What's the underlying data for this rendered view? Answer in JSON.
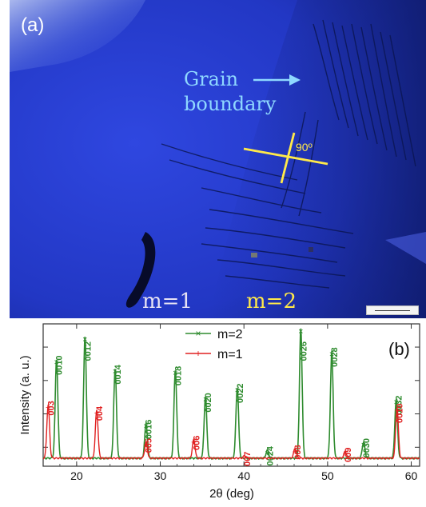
{
  "panel_a": {
    "label": "(a)",
    "grain_boundary_lines": [
      "Grain",
      "boundary"
    ],
    "angle_label": "90º",
    "region_left_label": "m=1",
    "region_right_label": "m=2",
    "colors": {
      "background": "#2338c8",
      "grain_text": "#8fd8ff",
      "angle_marker": "#ffe94a"
    }
  },
  "chart_data": {
    "type": "line",
    "panel_label": "(b)",
    "xlabel": "2θ (deg)",
    "ylabel": "Intensity (a. u.)",
    "xlim": [
      16,
      61
    ],
    "ylim": [
      0,
      1
    ],
    "xticks": [
      20,
      30,
      40,
      50,
      60
    ],
    "grid": false,
    "legend_position": "top-center",
    "series": [
      {
        "name": "m=2",
        "color": "#2e8b2e",
        "marker": "x",
        "peaks": [
          {
            "label": "0010",
            "x": 17.6,
            "y": 0.74
          },
          {
            "label": "0012",
            "x": 21.0,
            "y": 0.91
          },
          {
            "label": "0014",
            "x": 24.6,
            "y": 0.67
          },
          {
            "label": "0016",
            "x": 28.3,
            "y": 0.26
          },
          {
            "label": "0018",
            "x": 31.8,
            "y": 0.66
          },
          {
            "label": "0020",
            "x": 35.4,
            "y": 0.46
          },
          {
            "label": "0022",
            "x": 39.2,
            "y": 0.53
          },
          {
            "label": "0024",
            "x": 42.8,
            "y": 0.06
          },
          {
            "label": "0026",
            "x": 46.8,
            "y": 0.97
          },
          {
            "label": "0028",
            "x": 50.5,
            "y": 0.8
          },
          {
            "label": "0030",
            "x": 54.3,
            "y": 0.12
          },
          {
            "label": "0032",
            "x": 58.2,
            "y": 0.44
          }
        ]
      },
      {
        "name": "m=1",
        "color": "#e02020",
        "marker": "+",
        "peaks": [
          {
            "label": "003",
            "x": 16.6,
            "y": 0.4
          },
          {
            "label": "004",
            "x": 22.4,
            "y": 0.36
          },
          {
            "label": "005",
            "x": 28.3,
            "y": 0.12
          },
          {
            "label": "006",
            "x": 34.0,
            "y": 0.14
          },
          {
            "label": "007",
            "x": 40.1,
            "y": 0.02
          },
          {
            "label": "008",
            "x": 46.1,
            "y": 0.07
          },
          {
            "label": "009",
            "x": 52.1,
            "y": 0.05
          },
          {
            "label": "0010",
            "x": 58.3,
            "y": 0.38
          }
        ]
      }
    ]
  }
}
